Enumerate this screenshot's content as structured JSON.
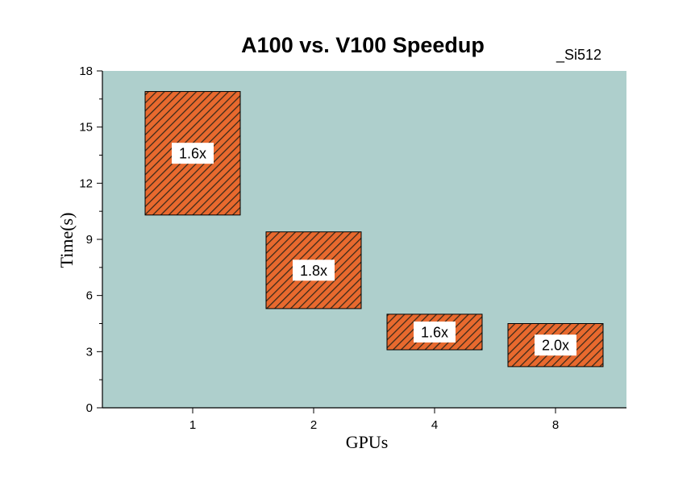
{
  "chart_data": {
    "type": "bar",
    "variant": "floating-range",
    "title": "A100 vs. V100 Speedup",
    "subtitle": "_Si512",
    "xlabel": "GPUs",
    "ylabel": "Time(s)",
    "categories": [
      "1",
      "2",
      "4",
      "8"
    ],
    "ranges": [
      {
        "low": 10.3,
        "high": 16.9,
        "label": "1.6x"
      },
      {
        "low": 5.3,
        "high": 9.4,
        "label": "1.8x"
      },
      {
        "low": 3.1,
        "high": 5.0,
        "label": "1.6x"
      },
      {
        "low": 2.2,
        "high": 4.5,
        "label": "2.0x"
      }
    ],
    "ylim": [
      0,
      18
    ],
    "yticks": [
      0,
      3,
      6,
      9,
      12,
      15,
      18
    ],
    "grid": false,
    "colors": {
      "plot_background": "#aecfcc",
      "bar_fill": "#e8692e",
      "bar_hatch": "#3a2a1a",
      "label_box": "#ffffff"
    }
  }
}
